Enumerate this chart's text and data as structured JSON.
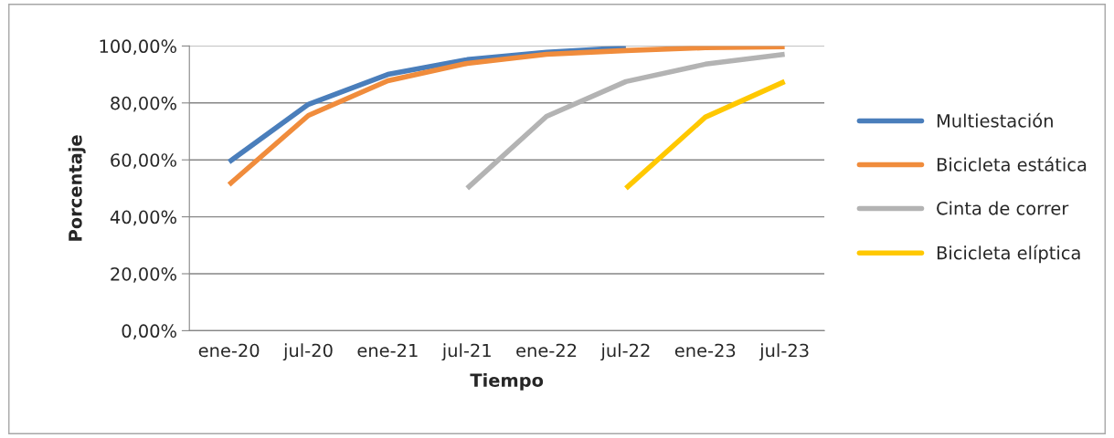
{
  "chart_data": {
    "type": "line",
    "xlabel": "Tiempo",
    "ylabel": "Porcentaje",
    "categories": [
      "ene-20",
      "jul-20",
      "ene-21",
      "jul-21",
      "ene-22",
      "jul-22",
      "ene-23",
      "jul-23"
    ],
    "series": [
      {
        "name": "Multiestación",
        "color": "#4a7ebb",
        "values": [
          59.3,
          79.5,
          90.0,
          95.2,
          97.8,
          99.4,
          null,
          null
        ]
      },
      {
        "name": "Bicicleta estática",
        "color": "#f08c3c",
        "values": [
          51.3,
          75.6,
          87.8,
          93.9,
          97.1,
          98.4,
          99.4,
          99.7
        ]
      },
      {
        "name": "Cinta de correr",
        "color": "#b3b3b3",
        "values": [
          null,
          null,
          null,
          50.0,
          75.3,
          87.5,
          93.6,
          97.1
        ]
      },
      {
        "name": "Bicicleta elíptica",
        "color": "#ffc800",
        "values": [
          null,
          null,
          null,
          null,
          null,
          50.0,
          75.0,
          87.5
        ]
      }
    ],
    "ylim": [
      0,
      100
    ],
    "yticks": [
      {
        "value": 0,
        "label": "0,00%"
      },
      {
        "value": 20,
        "label": "20,00%"
      },
      {
        "value": 40,
        "label": "40,00%"
      },
      {
        "value": 60,
        "label": "60,00%"
      },
      {
        "value": 80,
        "label": "80,00%"
      },
      {
        "value": 100,
        "label": "100,00%"
      }
    ],
    "grid": "y",
    "legend": "right",
    "marker": "none",
    "line_style": "solid"
  }
}
